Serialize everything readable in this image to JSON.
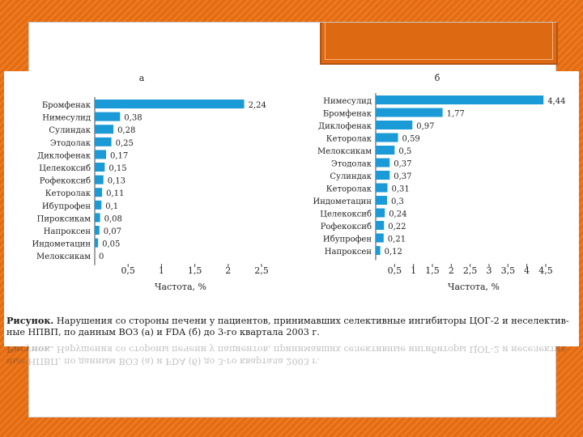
{
  "caption": {
    "label": "Рисунок.",
    "text": " Нарушения со стороны печени у пациентов, принимавших селективные ингибиторы ЦОГ-2 и неселектив-",
    "line2": "ные НПВП, по данным ВОЗ (а) и FDA (б) до 3-го квартала 2003 г."
  },
  "colors": {
    "bar": "#1a9ad6",
    "accent": "#e8701a"
  },
  "chart_data": [
    {
      "type": "bar",
      "orientation": "horizontal",
      "title": "а",
      "xlabel": "Частота, %",
      "xlim": [
        0,
        2.5
      ],
      "ticks": [
        "0,5",
        "1",
        "1,5",
        "2",
        "2,5"
      ],
      "categories": [
        "Бромфенак",
        "Нимесулид",
        "Сулиндак",
        "Этодолак",
        "Диклофенак",
        "Целекоксиб",
        "Рофекоксиб",
        "Кеторолак",
        "Ибупрофен",
        "Пироксикам",
        "Напроксен",
        "Индометацин",
        "Мелоксикам"
      ],
      "values": [
        2.24,
        0.38,
        0.28,
        0.25,
        0.17,
        0.15,
        0.13,
        0.11,
        0.1,
        0.08,
        0.07,
        0.05,
        0
      ],
      "labels": [
        "2,24",
        "0,38",
        "0,28",
        "0,25",
        "0,17",
        "0,15",
        "0,13",
        "0,11",
        "0,1",
        "0,08",
        "0,07",
        "0,05",
        "0"
      ]
    },
    {
      "type": "bar",
      "orientation": "horizontal",
      "title": "б",
      "xlabel": "Частота, %",
      "xlim": [
        0,
        4.5
      ],
      "ticks": [
        "0,5",
        "1",
        "1,5",
        "2",
        "2,5",
        "3",
        "3,5",
        "4",
        "4,5"
      ],
      "categories": [
        "Нимесулид",
        "Бромфенак",
        "Диклофенак",
        "Кеторолак",
        "Мелоксикам",
        "Этодолак",
        "Сулиндак",
        "Кеторолак",
        "Индометацин",
        "Целекоксиб",
        "Рофекоксиб",
        "Ибупрофен",
        "Напроксен"
      ],
      "values": [
        4.44,
        1.77,
        0.97,
        0.59,
        0.5,
        0.37,
        0.37,
        0.31,
        0.3,
        0.24,
        0.22,
        0.21,
        0.12
      ],
      "labels": [
        "4,44",
        "1,77",
        "0,97",
        "0,59",
        "0,5",
        "0,37",
        "0,37",
        "0,31",
        "0,3",
        "0,24",
        "0,22",
        "0,21",
        "0,12"
      ]
    }
  ]
}
